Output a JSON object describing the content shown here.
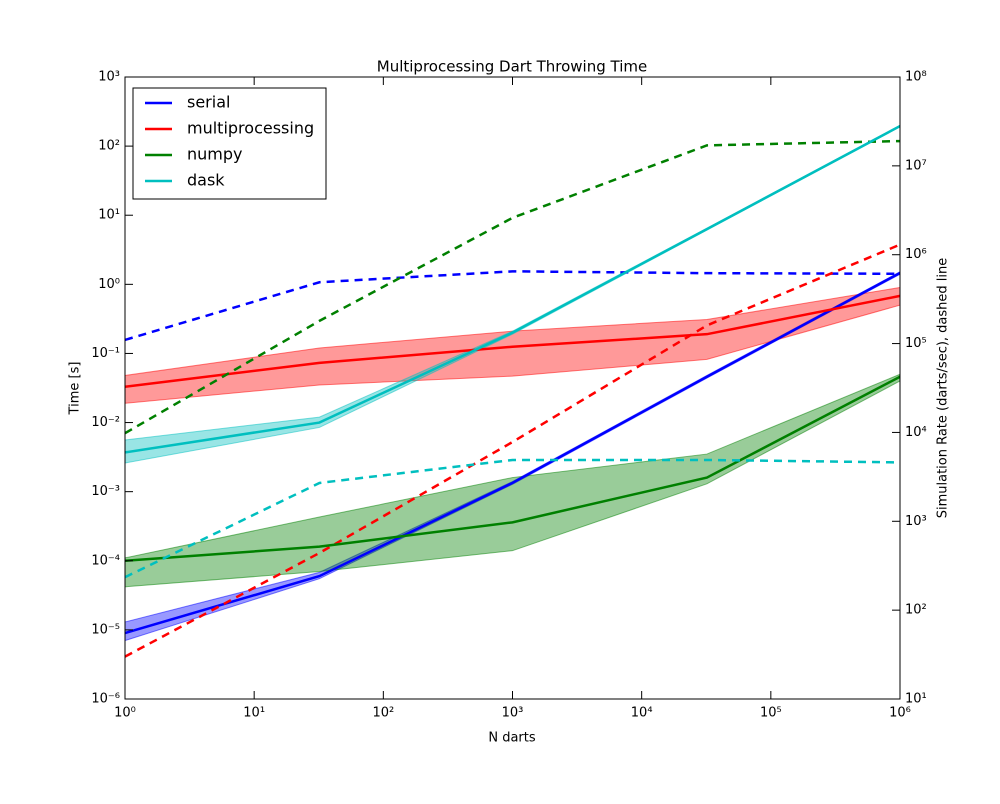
{
  "chart_data": {
    "type": "line",
    "title": "Multiprocessing Dart Throwing Time",
    "x_label": "N darts",
    "y_label": "Time [s]",
    "y2_label": "Simulation Rate (darts/sec), dashed line",
    "log_x": true,
    "log_y": true,
    "legend": "upper left",
    "x": [
      1,
      32,
      1000,
      32000,
      1000000
    ],
    "xlim": [
      1,
      1000000
    ],
    "xticks": [
      {
        "value": 1,
        "label": "10⁰"
      },
      {
        "value": 10,
        "label": "10¹"
      },
      {
        "value": 100,
        "label": "10²"
      },
      {
        "value": 1000,
        "label": "10³"
      },
      {
        "value": 10000,
        "label": "10⁴"
      },
      {
        "value": 100000,
        "label": "10⁵"
      },
      {
        "value": 1000000,
        "label": "10⁶"
      }
    ],
    "ylim": [
      1e-06,
      1000
    ],
    "yticks": [
      {
        "value": 1e-06,
        "label": "10⁻⁶"
      },
      {
        "value": 1e-05,
        "label": "10⁻⁵"
      },
      {
        "value": 0.0001,
        "label": "10⁻⁴"
      },
      {
        "value": 0.001,
        "label": "10⁻³"
      },
      {
        "value": 0.01,
        "label": "10⁻²"
      },
      {
        "value": 0.1,
        "label": "10⁻¹"
      },
      {
        "value": 1,
        "label": "10⁰"
      },
      {
        "value": 10,
        "label": "10¹"
      },
      {
        "value": 100,
        "label": "10²"
      },
      {
        "value": 1000,
        "label": "10³"
      }
    ],
    "y2lim": [
      10,
      100000000
    ],
    "y2ticks": [
      {
        "value": 10,
        "label": "10¹"
      },
      {
        "value": 100,
        "label": "10²"
      },
      {
        "value": 1000,
        "label": "10³"
      },
      {
        "value": 10000,
        "label": "10⁴"
      },
      {
        "value": 100000,
        "label": "10⁵"
      },
      {
        "value": 1000000,
        "label": "10⁶"
      },
      {
        "value": 10000000,
        "label": "10⁷"
      },
      {
        "value": 100000000,
        "label": "10⁸"
      }
    ],
    "series": [
      {
        "name": "serial",
        "color": "#0000ff",
        "values": [
          9e-06,
          6e-05,
          0.00134,
          0.046,
          1.46
        ],
        "lower": [
          7e-06,
          5.5e-05,
          0.00128,
          0.044,
          1.4
        ],
        "upper": [
          1.3e-05,
          6.8e-05,
          0.0014,
          0.048,
          1.52
        ],
        "rate": [
          110000,
          490000,
          650000,
          620000,
          610000
        ]
      },
      {
        "name": "multiprocessing",
        "color": "#ff0000",
        "values": [
          0.033,
          0.073,
          0.125,
          0.19,
          0.68
        ],
        "lower": [
          0.019,
          0.035,
          0.047,
          0.082,
          0.5
        ],
        "upper": [
          0.048,
          0.12,
          0.21,
          0.31,
          0.9
        ],
        "rate": [
          30,
          440,
          7800,
          160000,
          1300000
        ]
      },
      {
        "name": "numpy",
        "color": "#008000",
        "values": [
          0.0001,
          0.00016,
          0.00036,
          0.0016,
          0.046
        ],
        "lower": [
          4.2e-05,
          7e-05,
          0.00014,
          0.0013,
          0.04
        ],
        "upper": [
          0.00011,
          0.00043,
          0.0016,
          0.0035,
          0.05
        ],
        "rate": [
          9800,
          180000,
          2600000,
          17000000,
          19000000
        ]
      },
      {
        "name": "dask",
        "color": "#00bfbf",
        "values": [
          0.0037,
          0.01,
          0.2,
          6.3,
          195
        ],
        "lower": [
          0.0026,
          0.0085,
          0.19,
          6.1,
          190
        ],
        "upper": [
          0.0056,
          0.012,
          0.21,
          6.5,
          200
        ],
        "rate": [
          235,
          2700,
          4900,
          4900,
          4600
        ]
      }
    ]
  }
}
